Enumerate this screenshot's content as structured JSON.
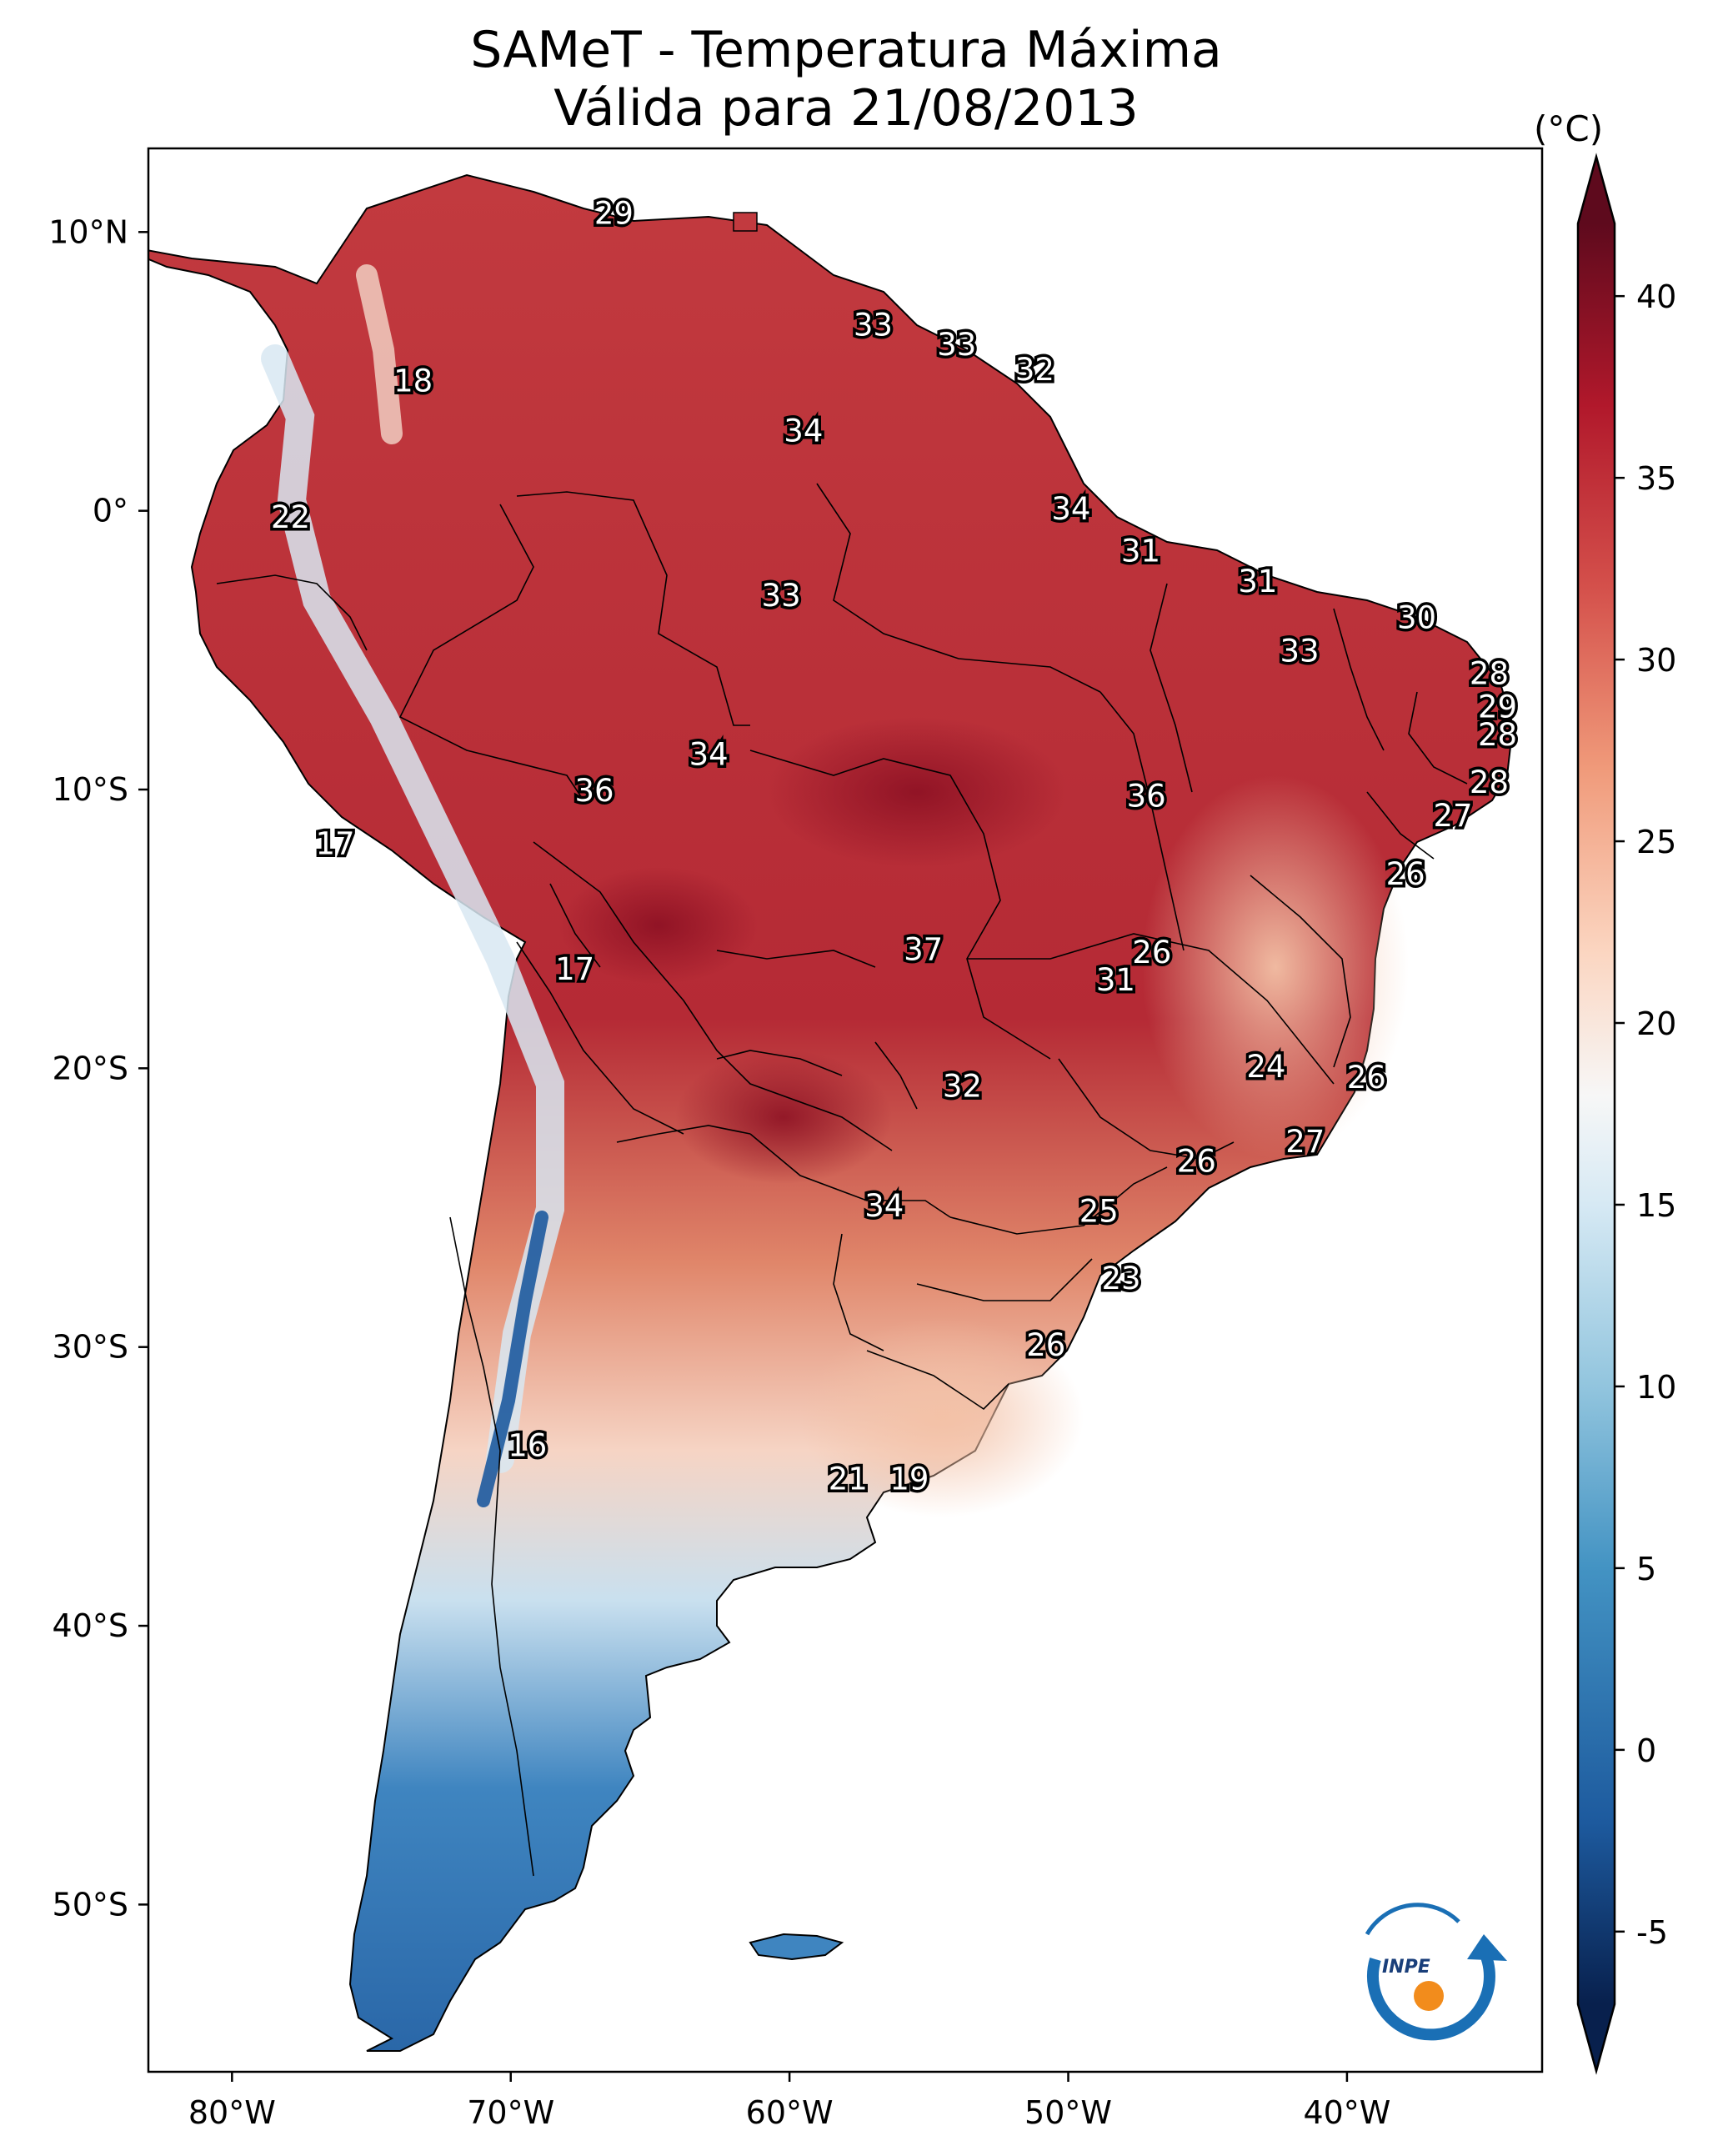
{
  "title": {
    "line1": "SAMeT - Temperatura Máxima",
    "line2": "Válida para 21/08/2013"
  },
  "colorbar": {
    "unit": "(°C)",
    "min": -7,
    "max": 42,
    "ticks": [
      "40",
      "35",
      "30",
      "25",
      "20",
      "15",
      "10",
      "5",
      "0",
      "-5"
    ],
    "tick_values": [
      40,
      35,
      30,
      25,
      20,
      15,
      10,
      5,
      0,
      -5
    ],
    "stops": [
      {
        "v": -7,
        "c": "#08204d"
      },
      {
        "v": -2,
        "c": "#1d5a9e"
      },
      {
        "v": 5,
        "c": "#4393c3"
      },
      {
        "v": 10,
        "c": "#92c5de"
      },
      {
        "v": 15,
        "c": "#d6e9f4"
      },
      {
        "v": 18,
        "c": "#f7f7f7"
      },
      {
        "v": 22,
        "c": "#fbd5c0"
      },
      {
        "v": 27,
        "c": "#f09a7a"
      },
      {
        "v": 32,
        "c": "#d4504b"
      },
      {
        "v": 37,
        "c": "#b1182b"
      },
      {
        "v": 42,
        "c": "#5e0a1d"
      }
    ]
  },
  "axes": {
    "lon_labels": [
      "80°W",
      "70°W",
      "60°W",
      "50°W",
      "40°W"
    ],
    "lon_values": [
      -80,
      -70,
      -60,
      -50,
      -40
    ],
    "lat_labels": [
      "10°N",
      "0°",
      "10°S",
      "20°S",
      "30°S",
      "40°S",
      "50°S"
    ],
    "lat_values": [
      10,
      0,
      -10,
      -20,
      -30,
      -40,
      -50
    ],
    "lon_range": [
      -83,
      -33
    ],
    "lat_range": [
      13,
      -56
    ]
  },
  "station_labels": [
    {
      "text": "29",
      "lon": -66.3,
      "lat": 10.6
    },
    {
      "text": "33",
      "lon": -57.0,
      "lat": 6.6
    },
    {
      "text": "33",
      "lon": -54.0,
      "lat": 5.9
    },
    {
      "text": "32",
      "lon": -51.2,
      "lat": 5.0
    },
    {
      "text": "18",
      "lon": -73.5,
      "lat": 4.6
    },
    {
      "text": "34",
      "lon": -59.5,
      "lat": 2.8
    },
    {
      "text": "34",
      "lon": -49.9,
      "lat": 0.0
    },
    {
      "text": "22",
      "lon": -77.9,
      "lat": -0.3
    },
    {
      "text": "31",
      "lon": -47.4,
      "lat": -1.5
    },
    {
      "text": "33",
      "lon": -60.3,
      "lat": -3.1
    },
    {
      "text": "31",
      "lon": -43.2,
      "lat": -2.6
    },
    {
      "text": "30",
      "lon": -37.5,
      "lat": -3.9
    },
    {
      "text": "33",
      "lon": -41.7,
      "lat": -5.1
    },
    {
      "text": "28",
      "lon": -34.9,
      "lat": -5.9
    },
    {
      "text": "29",
      "lon": -34.6,
      "lat": -7.1
    },
    {
      "text": "28",
      "lon": -34.6,
      "lat": -8.1
    },
    {
      "text": "34",
      "lon": -62.9,
      "lat": -8.8
    },
    {
      "text": "36",
      "lon": -67.0,
      "lat": -10.1
    },
    {
      "text": "36",
      "lon": -47.2,
      "lat": -10.3
    },
    {
      "text": "28",
      "lon": -34.9,
      "lat": -9.8
    },
    {
      "text": "27",
      "lon": -36.2,
      "lat": -11.0
    },
    {
      "text": "17",
      "lon": -76.3,
      "lat": -12.0
    },
    {
      "text": "26",
      "lon": -37.9,
      "lat": -13.1
    },
    {
      "text": "37",
      "lon": -55.2,
      "lat": -15.8
    },
    {
      "text": "26",
      "lon": -47.0,
      "lat": -15.9
    },
    {
      "text": "17",
      "lon": -67.7,
      "lat": -16.5
    },
    {
      "text": "31",
      "lon": -48.3,
      "lat": -16.9
    },
    {
      "text": "24",
      "lon": -42.9,
      "lat": -20.0
    },
    {
      "text": "26",
      "lon": -39.3,
      "lat": -20.4
    },
    {
      "text": "32",
      "lon": -53.8,
      "lat": -20.7
    },
    {
      "text": "27",
      "lon": -41.5,
      "lat": -22.7
    },
    {
      "text": "26",
      "lon": -45.4,
      "lat": -23.4
    },
    {
      "text": "34",
      "lon": -56.6,
      "lat": -25.0
    },
    {
      "text": "25",
      "lon": -48.9,
      "lat": -25.2
    },
    {
      "text": "23",
      "lon": -48.1,
      "lat": -27.6
    },
    {
      "text": "26",
      "lon": -50.8,
      "lat": -30.0
    },
    {
      "text": "16",
      "lon": -69.4,
      "lat": -33.6
    },
    {
      "text": "21",
      "lon": -57.9,
      "lat": -34.8
    },
    {
      "text": "19",
      "lon": -55.7,
      "lat": -34.8
    }
  ],
  "logo": {
    "text": "INPE",
    "colors": {
      "blue": "#1a6fb5",
      "orange": "#f28c1c"
    }
  }
}
